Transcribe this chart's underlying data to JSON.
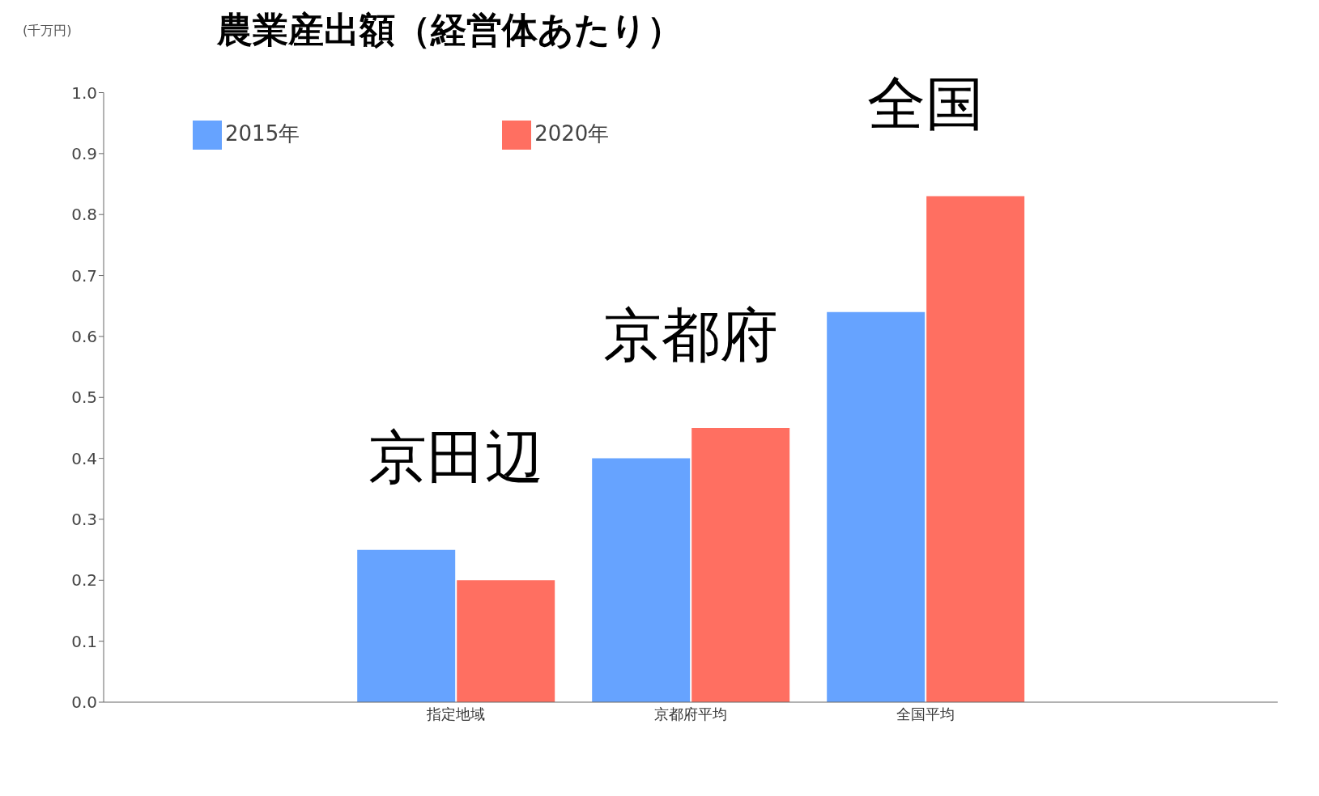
{
  "chart_data": {
    "type": "bar",
    "title": "農業産出額（経営体あたり）",
    "ylabel": "(千万円)",
    "categories": [
      null,
      "指定地域",
      "京都府平均",
      "全国平均",
      null
    ],
    "series": [
      {
        "name": "2015年",
        "color": "#66a3ff",
        "values": [
          null,
          0.25,
          0.4,
          0.64,
          null
        ]
      },
      {
        "name": "2020年",
        "color": "#ff6f61",
        "values": [
          null,
          0.2,
          0.45,
          0.83,
          null
        ]
      }
    ],
    "ylim": [
      0,
      1
    ],
    "yticks": [
      {
        "value": 0,
        "label": "0.0"
      },
      0.1,
      0.2,
      0.3,
      0.4,
      0.5,
      0.6,
      0.7,
      0.8,
      0.9,
      {
        "value": 1,
        "label": "1.0"
      }
    ],
    "annotations": [
      "京田辺",
      "京都府",
      "全国"
    ],
    "legend": "top left",
    "grid": false
  }
}
